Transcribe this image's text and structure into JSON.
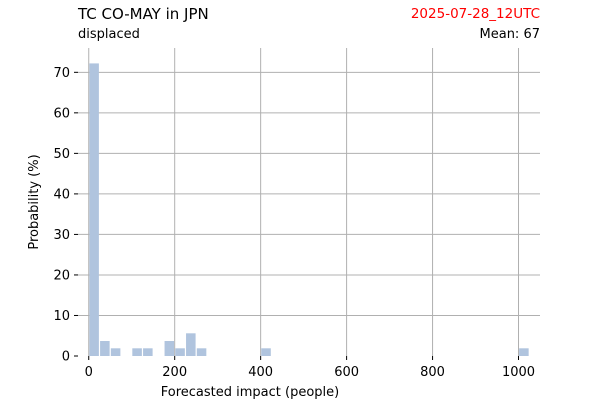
{
  "header": {
    "title": "TC CO-MAY in JPN",
    "subtitle": "displaced",
    "date_label": "2025-07-28_12UTC",
    "mean_label": "Mean: 67"
  },
  "colors": {
    "bar": "#b0c4de",
    "grid": "#b0b0b0",
    "date_text": "#ff0000"
  },
  "chart_data": {
    "type": "bar",
    "title": "TC CO-MAY in JPN",
    "subtitle": "displaced",
    "xlabel": "Forecasted impact (people)",
    "ylabel": "Probability (%)",
    "xlim": [
      -25,
      1050
    ],
    "ylim": [
      0,
      76
    ],
    "xticks": [
      0,
      200,
      400,
      600,
      800,
      1000
    ],
    "yticks": [
      0,
      10,
      20,
      30,
      40,
      50,
      60,
      70
    ],
    "grid": true,
    "bar_width": 25,
    "bars": [
      {
        "x": 12.5,
        "value": 72.2
      },
      {
        "x": 37.5,
        "value": 3.7
      },
      {
        "x": 62.5,
        "value": 1.9
      },
      {
        "x": 112.5,
        "value": 1.9
      },
      {
        "x": 137.5,
        "value": 1.9
      },
      {
        "x": 187.5,
        "value": 3.7
      },
      {
        "x": 212.5,
        "value": 1.9
      },
      {
        "x": 237.5,
        "value": 5.6
      },
      {
        "x": 262.5,
        "value": 1.9
      },
      {
        "x": 412.5,
        "value": 1.9
      },
      {
        "x": 1012.5,
        "value": 1.9
      }
    ]
  }
}
